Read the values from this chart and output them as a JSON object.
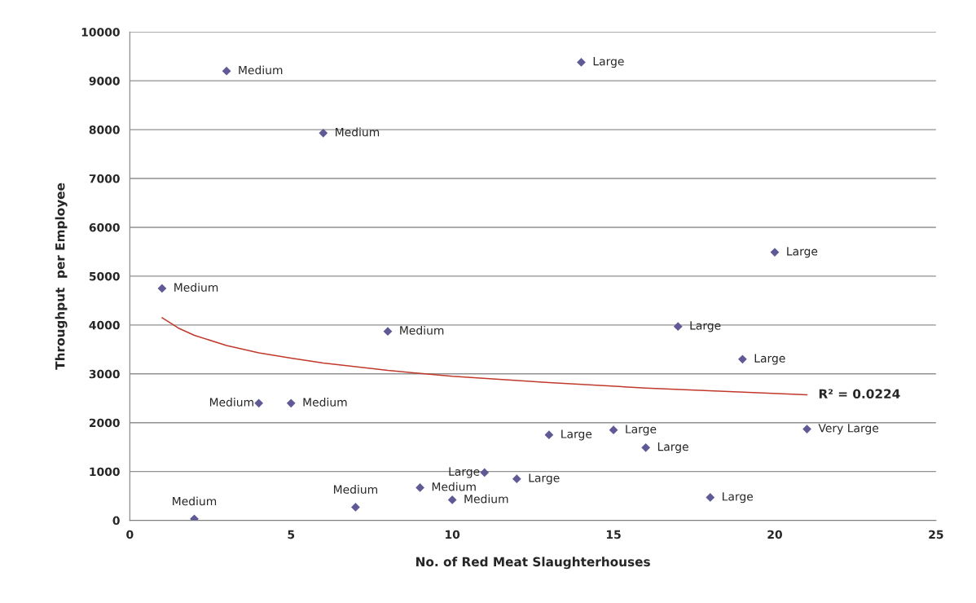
{
  "chart_data": {
    "type": "scatter",
    "xlabel": "No. of Red Meat Slaughterhouses",
    "ylabel": "Throughput  per Employee",
    "xlim": [
      0,
      25
    ],
    "xticks": [
      0,
      5,
      10,
      15,
      20,
      25
    ],
    "ylim": [
      0,
      10000
    ],
    "yticks": [
      0,
      1000,
      2000,
      3000,
      4000,
      5000,
      6000,
      7000,
      8000,
      9000,
      10000
    ],
    "grid": "y",
    "marker": "diamond",
    "series": [
      {
        "color": "#5f5a96",
        "x": [
          1,
          2,
          3,
          4,
          5,
          6,
          7,
          8,
          9,
          10,
          11,
          12,
          13,
          14,
          15,
          16,
          17,
          18,
          19,
          20,
          21
        ],
        "values": [
          4750,
          30,
          9200,
          2400,
          2400,
          7930,
          270,
          3870,
          670,
          420,
          980,
          850,
          1750,
          9380,
          1850,
          1490,
          3970,
          470,
          3300,
          5490,
          1870
        ]
      },
      {
        "type": "line",
        "color": "#c0392b",
        "marker": "none",
        "x": [
          1,
          1.5,
          2,
          3,
          4,
          5,
          6,
          8,
          10,
          13,
          16,
          21
        ],
        "values": [
          4150,
          3940,
          3790,
          3580,
          3430,
          3320,
          3220,
          3070,
          2950,
          2820,
          2710,
          2570
        ]
      }
    ],
    "annotations": [
      {
        "text": "Medium",
        "x": 1,
        "y": 4750
      },
      {
        "text": "Medium",
        "x": 2,
        "y": 30
      },
      {
        "text": "Medium",
        "x": 3,
        "y": 9200
      },
      {
        "text": "Medium",
        "x": 4,
        "y": 2400
      },
      {
        "text": "Medium",
        "x": 5,
        "y": 2400
      },
      {
        "text": "Medium",
        "x": 6,
        "y": 7930
      },
      {
        "text": "Medium",
        "x": 7,
        "y": 270
      },
      {
        "text": "Medium",
        "x": 8,
        "y": 3870
      },
      {
        "text": "Medium",
        "x": 9,
        "y": 670
      },
      {
        "text": "Medium",
        "x": 10,
        "y": 420
      },
      {
        "text": "Large",
        "x": 11,
        "y": 980
      },
      {
        "text": "Large",
        "x": 12,
        "y": 850
      },
      {
        "text": "Large",
        "x": 13,
        "y": 1750
      },
      {
        "text": "Large",
        "x": 14,
        "y": 9380
      },
      {
        "text": "Large",
        "x": 15,
        "y": 1850
      },
      {
        "text": "Large",
        "x": 16,
        "y": 1490
      },
      {
        "text": "Large",
        "x": 17,
        "y": 3970
      },
      {
        "text": "Large",
        "x": 18,
        "y": 470
      },
      {
        "text": "Large",
        "x": 19,
        "y": 3300
      },
      {
        "text": "Large",
        "x": 20,
        "y": 5490
      },
      {
        "text": "Very Large",
        "x": 21,
        "y": 1870
      },
      {
        "text": "R² = 0.0224",
        "x": 21,
        "y": 2570
      }
    ]
  }
}
